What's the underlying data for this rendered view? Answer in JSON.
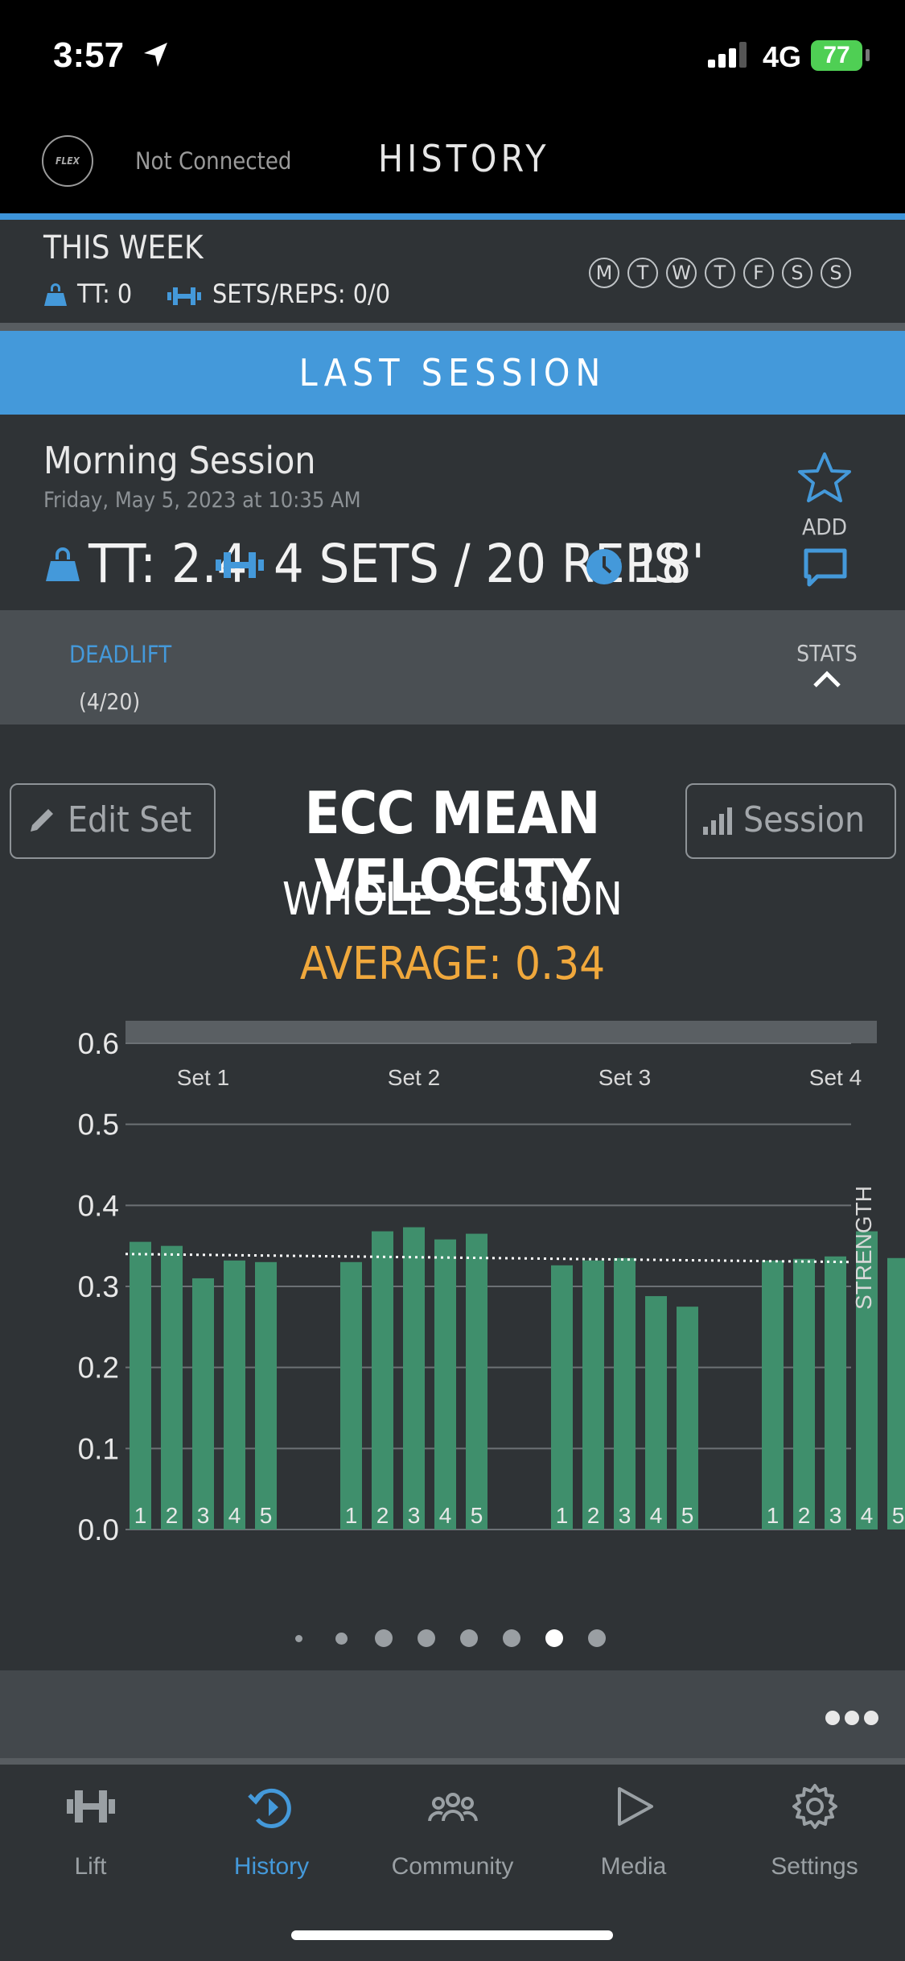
{
  "status": {
    "time": "3:57",
    "network": "4G",
    "battery": "77"
  },
  "header": {
    "connection": "Not Connected",
    "title": "HISTORY",
    "logo_text": "FLEX"
  },
  "week": {
    "title": "THIS WEEK",
    "tt": "TT: 0",
    "sets_reps": "SETS/REPS: 0/0",
    "days": [
      "M",
      "T",
      "W",
      "T",
      "F",
      "S",
      "S"
    ]
  },
  "banner": {
    "label": "LAST SESSION"
  },
  "session": {
    "name": "Morning Session",
    "date": "Friday, May 5, 2023 at 10:35 AM",
    "tt": "TT: 2.4",
    "sets_reps": "4 SETS / 20 REPS",
    "duration": "18'",
    "add_label": "ADD"
  },
  "exercise": {
    "name": "DEADLIFT",
    "count": "(4/20)",
    "stats_label": "STATS"
  },
  "metric": {
    "edit_label": "Edit Set",
    "title": "ECC MEAN VELOCITY",
    "session_label": "Session",
    "scope": "WHOLE SESSION",
    "average": "AVERAGE: 0.34"
  },
  "chart_data": {
    "type": "bar",
    "title": "ECC MEAN VELOCITY",
    "xlabel": "",
    "ylabel": "",
    "ylim": [
      0,
      0.6
    ],
    "yticks": [
      "0.0",
      "0.1",
      "0.2",
      "0.3",
      "0.4",
      "0.5",
      "0.6"
    ],
    "groups": [
      "Set 1",
      "Set 2",
      "Set 3",
      "Set 4"
    ],
    "rep_labels": [
      "1",
      "2",
      "3",
      "4",
      "5"
    ],
    "series": [
      {
        "values": [
          0.355,
          0.35,
          0.31,
          0.332,
          0.33
        ]
      },
      {
        "values": [
          0.33,
          0.368,
          0.373,
          0.358,
          0.365
        ]
      },
      {
        "values": [
          0.326,
          0.332,
          0.335,
          0.288,
          0.275
        ]
      },
      {
        "values": [
          0.332,
          0.334,
          0.337,
          0.368,
          0.335
        ]
      }
    ],
    "average_line": 0.34,
    "zone_label": "STRENGTH",
    "grid": true,
    "bar_color": "#3f8f6c"
  },
  "pager": {
    "count": 8,
    "active": 6
  },
  "tabs": [
    {
      "label": "Lift",
      "icon": "dumbbell-icon"
    },
    {
      "label": "History",
      "icon": "history-icon"
    },
    {
      "label": "Community",
      "icon": "community-icon"
    },
    {
      "label": "Media",
      "icon": "play-icon"
    },
    {
      "label": "Settings",
      "icon": "gear-icon"
    }
  ],
  "colors": {
    "accent": "#4499da",
    "average": "#f0a83c",
    "bar": "#3f8f6c"
  }
}
